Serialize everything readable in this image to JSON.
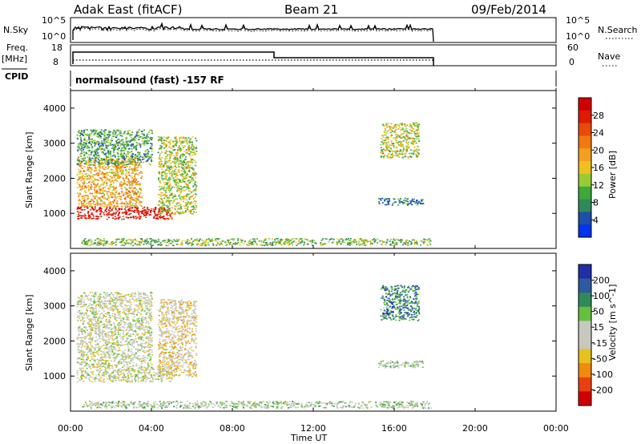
{
  "header": {
    "station": "Adak East (fitACF)",
    "beam": "Beam 21",
    "date": "09/Feb/2014"
  },
  "panels": {
    "nsky": {
      "label": "N.Sky",
      "tick_top": "10^5",
      "tick_bottom": "10^0",
      "right_label": "N.Search",
      "right_tick_top": "10^5",
      "right_tick_bottom": "10^0"
    },
    "freq": {
      "label_line1": "Freq.",
      "label_line2": "[MHz]",
      "tick_top": "18",
      "tick_bottom": "8",
      "right_label": "Nave",
      "right_tick_top": "60",
      "right_tick_bottom": "0"
    },
    "cpid": {
      "label": "CPID",
      "text": "normalsound (fast) -157 RF"
    }
  },
  "axes": {
    "xlabel": "Time UT",
    "xticks": [
      "00:00",
      "04:00",
      "08:00",
      "12:00",
      "16:00",
      "20:00",
      "00:00"
    ],
    "ylabel": "Slant Range [km]",
    "yticks": [
      "1000",
      "2000",
      "3000",
      "4000"
    ]
  },
  "colorbars": {
    "power": {
      "label": "Power [dB]",
      "ticks": [
        "4",
        "8",
        "12",
        "16",
        "20",
        "24",
        "28"
      ],
      "colors": [
        "#0033ee",
        "#1f4ea8",
        "#2f8a5a",
        "#3fa83a",
        "#99cc33",
        "#f0c020",
        "#f3a020",
        "#ee7a10",
        "#e84a0a",
        "#e01b00",
        "#d00000"
      ]
    },
    "velocity": {
      "label": "Velocity [m s^-1]",
      "ticks": [
        "200",
        "100",
        "50",
        "15",
        "-15",
        "-50",
        "-100",
        "-200"
      ],
      "colors": [
        "#1f2fa8",
        "#2f5aa0",
        "#2f8a5a",
        "#66c040",
        "#c8c8c0",
        "#c8c8c0",
        "#e8c020",
        "#f08a10",
        "#e84010",
        "#d00000"
      ]
    }
  },
  "chart_data": [
    {
      "type": "heatmap",
      "title": "Power",
      "xlabel": "Time UT",
      "ylabel": "Slant Range [km]",
      "xlim": [
        0,
        24
      ],
      "ylim": [
        0,
        4500
      ],
      "units": "dB",
      "regions": [
        {
          "t0": 0.3,
          "t1": 5.0,
          "r0": 850,
          "r1": 1200,
          "level": 28
        },
        {
          "t0": 0.3,
          "t1": 3.5,
          "r0": 1200,
          "r1": 2600,
          "level": 18
        },
        {
          "t0": 0.3,
          "t1": 4.0,
          "r0": 2400,
          "r1": 3400,
          "level": 10
        },
        {
          "t0": 4.3,
          "t1": 6.2,
          "r0": 1000,
          "r1": 3200,
          "level": 14
        },
        {
          "t0": 15.2,
          "t1": 17.4,
          "r0": 1250,
          "r1": 1450,
          "level": 8
        },
        {
          "t0": 15.3,
          "t1": 17.2,
          "r0": 2600,
          "r1": 3600,
          "level": 14
        },
        {
          "t0": 0.5,
          "t1": 17.8,
          "r0": 100,
          "r1": 300,
          "level": 12
        }
      ]
    },
    {
      "type": "heatmap",
      "title": "Velocity",
      "xlabel": "Time UT",
      "ylabel": "Slant Range [km]",
      "xlim": [
        0,
        24
      ],
      "ylim": [
        0,
        4500
      ],
      "units": "m s^-1",
      "regions": [
        {
          "t0": 0.3,
          "t1": 5.0,
          "r0": 850,
          "r1": 1300,
          "level": 0
        },
        {
          "t0": 0.3,
          "t1": 4.0,
          "r0": 1300,
          "r1": 3400,
          "level": 0
        },
        {
          "t0": 4.3,
          "t1": 6.2,
          "r0": 1000,
          "r1": 3200,
          "level": -30
        },
        {
          "t0": 15.2,
          "t1": 17.4,
          "r0": 1250,
          "r1": 1450,
          "level": 40
        },
        {
          "t0": 15.3,
          "t1": 17.2,
          "r0": 2600,
          "r1": 3600,
          "level": 120
        },
        {
          "t0": 0.5,
          "t1": 17.8,
          "r0": 100,
          "r1": 300,
          "level": 30
        }
      ]
    }
  ]
}
